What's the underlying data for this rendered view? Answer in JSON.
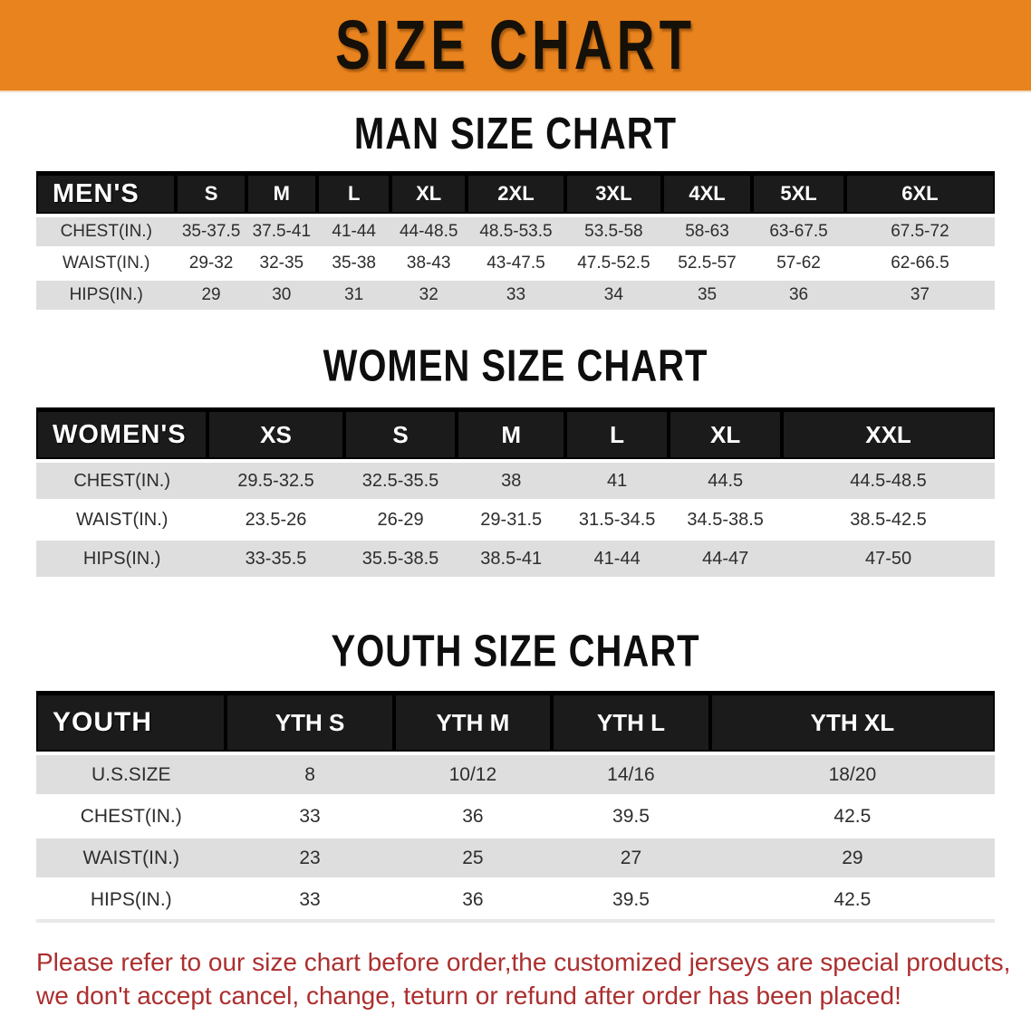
{
  "banner": {
    "title": "SIZE CHART",
    "bg_color": "#E8831E",
    "text_color": "#151008"
  },
  "colors": {
    "banner_orange": "#E8831E",
    "table_header_black": "#1B1B1B",
    "row_gray": "#DEDEDE",
    "row_white": "#FFFFFF",
    "cell_text": "#2D2D2D",
    "disclaimer_red": "#AC2F2F"
  },
  "sections": [
    {
      "heading": "MAN SIZE CHART",
      "table": {
        "header": [
          "MEN'S",
          "S",
          "M",
          "L",
          "XL",
          "2XL",
          "3XL",
          "4XL",
          "5XL",
          "6XL"
        ],
        "rows": [
          [
            "CHEST(IN.)",
            "35-37.5",
            "37.5-41",
            "41-44",
            "44-48.5",
            "48.5-53.5",
            "53.5-58",
            "58-63",
            "63-67.5",
            "67.5-72"
          ],
          [
            "WAIST(IN.)",
            "29-32",
            "32-35",
            "35-38",
            "38-43",
            "43-47.5",
            "47.5-52.5",
            "52.5-57",
            "57-62",
            "62-66.5"
          ],
          [
            "HIPS(IN.)",
            "29",
            "30",
            "31",
            "32",
            "33",
            "34",
            "35",
            "36",
            "37"
          ]
        ]
      }
    },
    {
      "heading": "WOMEN SIZE CHART",
      "table": {
        "header": [
          "WOMEN'S",
          "XS",
          "S",
          "M",
          "L",
          "XL",
          "XXL"
        ],
        "rows": [
          [
            "CHEST(IN.)",
            "29.5-32.5",
            "32.5-35.5",
            "38",
            "41",
            "44.5",
            "44.5-48.5"
          ],
          [
            "WAIST(IN.)",
            "23.5-26",
            "26-29",
            "29-31.5",
            "31.5-34.5",
            "34.5-38.5",
            "38.5-42.5"
          ],
          [
            "HIPS(IN.)",
            "33-35.5",
            "35.5-38.5",
            "38.5-41",
            "41-44",
            "44-47",
            "47-50"
          ]
        ]
      }
    },
    {
      "heading": "YOUTH SIZE CHART",
      "table": {
        "header": [
          "YOUTH",
          "YTH S",
          "YTH M",
          "YTH L",
          "YTH XL"
        ],
        "rows": [
          [
            "U.S.SIZE",
            "8",
            "10/12",
            "14/16",
            "18/20"
          ],
          [
            "CHEST(IN.)",
            "33",
            "36",
            "39.5",
            "42.5"
          ],
          [
            "WAIST(IN.)",
            "23",
            "25",
            "27",
            "29"
          ],
          [
            "HIPS(IN.)",
            "33",
            "36",
            "39.5",
            "42.5"
          ]
        ]
      }
    }
  ],
  "disclaimer": {
    "line1": "Please refer to our size chart before order,the customized jerseys are special products,",
    "line2": "we don't accept cancel, change, teturn or refund after order has been placed!"
  }
}
